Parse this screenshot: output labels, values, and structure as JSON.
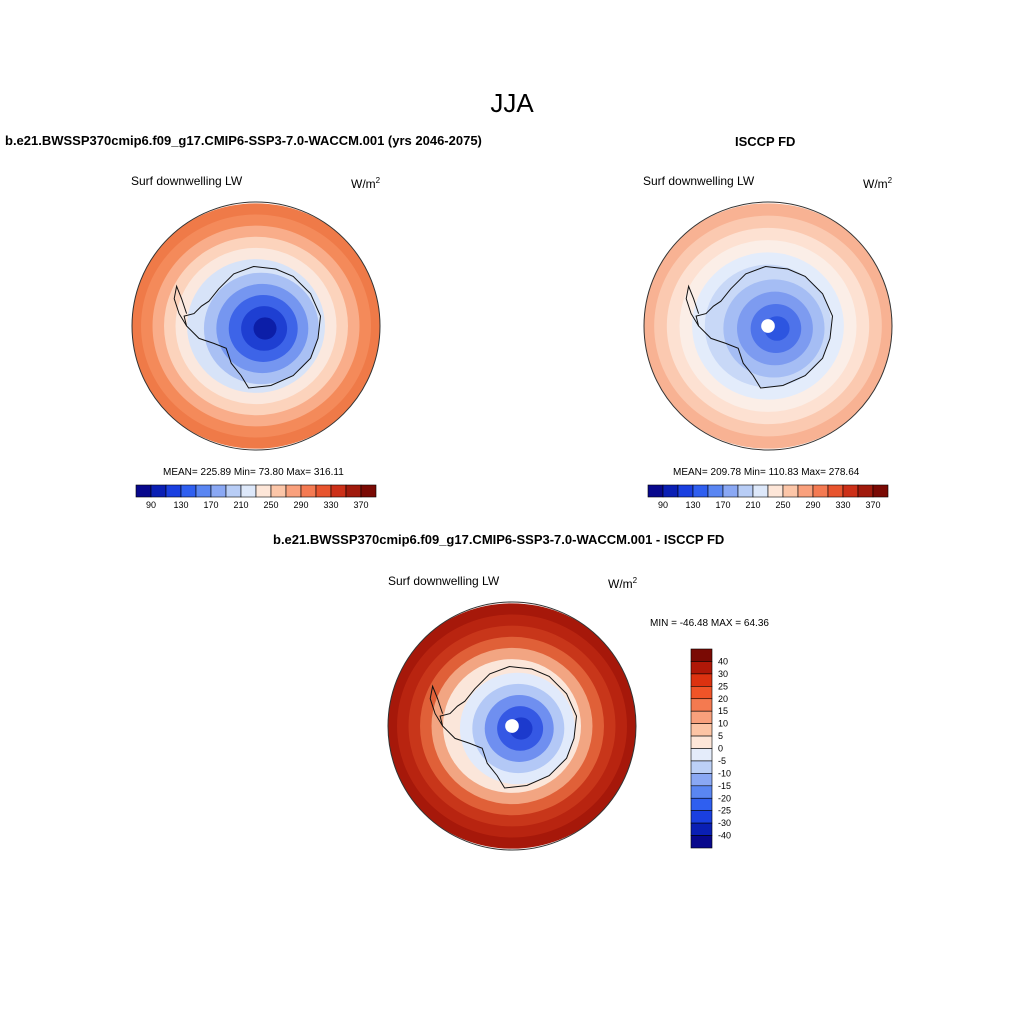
{
  "title": "JJA",
  "panels": [
    {
      "title": "b.e21.BWSSP370cmip6.f09_g17.CMIP6-SSP3-7.0-WACCM.001 (yrs 2046-2075)",
      "variable": "Surf downwelling LW",
      "units_base": "W/m",
      "units_exp": "2",
      "stats": "MEAN= 225.89  Min=  73.80  Max= 316.11"
    },
    {
      "title": "ISCCP FD",
      "variable": "Surf downwelling LW",
      "units_base": "W/m",
      "units_exp": "2",
      "stats": "MEAN= 209.78  Min= 110.83  Max= 278.64"
    },
    {
      "title": "b.e21.BWSSP370cmip6.f09_g17.CMIP6-SSP3-7.0-WACCM.001 - ISCCP FD",
      "variable": "Surf downwelling LW",
      "units_base": "W/m",
      "units_exp": "2",
      "stats": "MIN = -46.48 MAX =  64.36"
    }
  ],
  "abs_colorbar": {
    "colors": [
      "#08088c",
      "#0a1fb4",
      "#1a3fe0",
      "#2f5ff0",
      "#5a86f2",
      "#8aa8f4",
      "#b8cdf6",
      "#dde8fa",
      "#fde6d8",
      "#fcc6a8",
      "#f9a07c",
      "#f47a52",
      "#e8542e",
      "#cc3018",
      "#a01a0c",
      "#7a0a04"
    ],
    "tick_labels": [
      "90",
      "130",
      "170",
      "210",
      "250",
      "290",
      "330",
      "370"
    ]
  },
  "diff_colorbar": {
    "colors": [
      "#7a0a04",
      "#b01808",
      "#dc3210",
      "#f05428",
      "#f47a50",
      "#f8a07c",
      "#fcc4a4",
      "#fde6d8",
      "#e4ecfa",
      "#bcd0f6",
      "#8aa8f4",
      "#5a86f2",
      "#2f5ff0",
      "#1a3fe0",
      "#0a1fb4",
      "#08088c"
    ],
    "tick_labels": [
      "40",
      "30",
      "25",
      "20",
      "15",
      "10",
      "5",
      "0",
      "-5",
      "-10",
      "-15",
      "-20",
      "-25",
      "-30",
      "-40"
    ]
  },
  "maps": [
    {
      "field": "model",
      "rings": [
        "#ef7a48",
        "#f48a5a",
        "#f9ad8a",
        "#fcd3bc",
        "#fbe8de",
        "#d7e3f8",
        "#a9c0f4",
        "#7596f0",
        "#3d64e8",
        "#1e3fd2",
        "#0c1ea8"
      ],
      "pole_hole": false
    },
    {
      "field": "obs",
      "rings": [
        "#f8b293",
        "#fbc9b0",
        "#fde1d2",
        "#fbeee7",
        "#e3ecfb",
        "#c8d8f7",
        "#a5bdf4",
        "#7d9bf0",
        "#4e73ea",
        "#2d55e0"
      ],
      "pole_hole": true
    },
    {
      "field": "difference",
      "rings": [
        "#a6180a",
        "#b82410",
        "#c8361a",
        "#e06038",
        "#f2a582",
        "#fbe6da",
        "#e1eafb",
        "#b3c8f6",
        "#6f8ff0",
        "#3558e4",
        "#1c3acd"
      ],
      "pole_hole": true
    }
  ]
}
